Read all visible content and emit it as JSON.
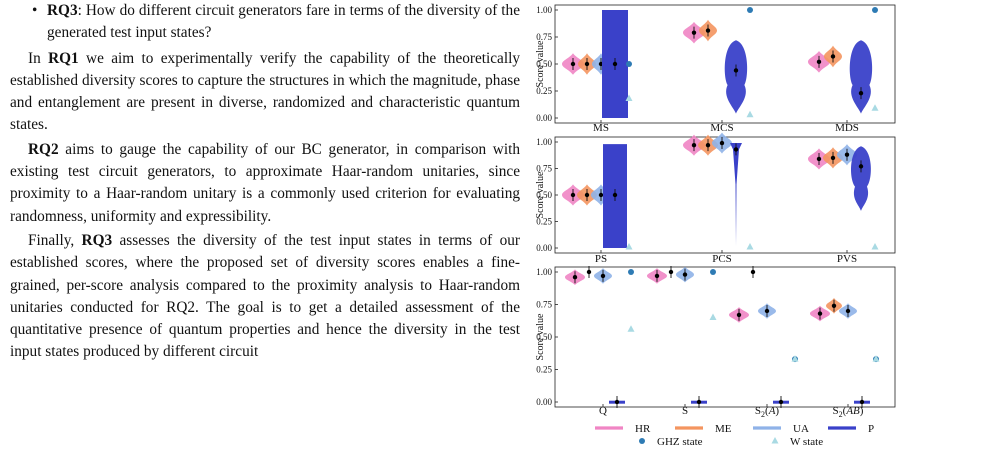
{
  "text": {
    "rq3_item": {
      "label": "RQ3",
      "body": ": How do different circuit generators fare in terms of the diversity of the generated test input states?"
    },
    "para1": {
      "pre": "In ",
      "rq": "RQ1",
      "body": " we aim to experimentally verify the capability of the theoretically established diversity scores to capture the structures in which the magnitude, phase and entanglement are present in diverse, randomized and characteristic quantum states."
    },
    "para2": {
      "rq": "RQ2",
      "body": " aims to gauge the capability of our BC generator, in comparison with existing test circuit generators, to approximate Haar-random unitaries, since proximity to a Haar-random unitary is a commonly used criterion for evaluating randomness, uniformity and expressibility."
    },
    "para3": {
      "pre": "Finally, ",
      "rq": "RQ3",
      "body": " assesses the diversity of the test input states in terms of our established scores, where the proposed set of diversity scores enables a fine-grained, per-score analysis compared to the proximity analysis to Haar-random unitaries conducted for RQ2. The goal is to get a detailed assessment of the quantitative presence of quantum properties and hence the diversity in the test input states produced by different circuit"
    }
  },
  "chart_data": [
    {
      "type": "violin",
      "ylabel": "Score value",
      "ylim": [
        0,
        1
      ],
      "yticks": [
        "0.00",
        "0.25",
        "0.50",
        "0.75",
        "1.00"
      ],
      "categories": [
        "MS",
        "MCS",
        "MDS"
      ],
      "series": [
        {
          "name": "HR",
          "values": [
            0.5,
            0.79,
            0.52
          ]
        },
        {
          "name": "ME",
          "values": [
            0.5,
            0.81,
            0.57
          ]
        },
        {
          "name": "UA",
          "values": [
            0.5,
            null,
            null
          ]
        },
        {
          "name": "P",
          "values": [
            0.5,
            0.44,
            0.23
          ]
        }
      ],
      "ghz_state": [
        0.5,
        1.0,
        1.0
      ],
      "w_state": [
        0.18,
        0.03,
        0.09
      ]
    },
    {
      "type": "violin",
      "ylabel": "Score value",
      "ylim": [
        0,
        1
      ],
      "yticks": [
        "0.00",
        "0.25",
        "0.50",
        "0.75",
        "1.00"
      ],
      "categories": [
        "PS",
        "PCS",
        "PVS"
      ],
      "series": [
        {
          "name": "HR",
          "values": [
            0.5,
            0.97,
            0.84
          ]
        },
        {
          "name": "ME",
          "values": [
            0.5,
            0.97,
            0.85
          ]
        },
        {
          "name": "UA",
          "values": [
            0.5,
            0.99,
            0.88
          ]
        },
        {
          "name": "P",
          "values": [
            0.5,
            0.93,
            0.77
          ]
        }
      ],
      "ghz_state": [
        null,
        null,
        null
      ],
      "w_state": [
        0.0,
        0.0,
        0.0
      ]
    },
    {
      "type": "violin",
      "ylabel": "Score value",
      "ylim": [
        0,
        1
      ],
      "yticks": [
        "0.00",
        "0.25",
        "0.50",
        "0.75",
        "1.00"
      ],
      "categories": [
        "Q",
        "S",
        "S2(A)",
        "S2(AB)"
      ],
      "series": [
        {
          "name": "HR",
          "values": [
            0.96,
            0.97,
            0.67,
            0.68
          ]
        },
        {
          "name": "ME",
          "values": [
            1.0,
            1.0,
            1.0,
            0.74
          ]
        },
        {
          "name": "UA",
          "values": [
            0.97,
            0.98,
            0.7,
            0.7
          ]
        },
        {
          "name": "P",
          "values": [
            0.0,
            0.0,
            0.0,
            0.0
          ]
        }
      ],
      "ghz_state": [
        1.0,
        1.0,
        0.33,
        0.33
      ],
      "w_state": [
        0.56,
        0.65,
        0.33,
        0.33
      ]
    }
  ],
  "legend": {
    "items": [
      {
        "label": "HR",
        "color": "#f085c4"
      },
      {
        "label": "ME",
        "color": "#f4955f"
      },
      {
        "label": "UA",
        "color": "#8fb2e8"
      },
      {
        "label": "P",
        "color": "#3a41c9"
      },
      {
        "label": "GHZ state",
        "color": "#2e7bb4"
      },
      {
        "label": "W state",
        "color": "#a9dae3"
      }
    ]
  }
}
